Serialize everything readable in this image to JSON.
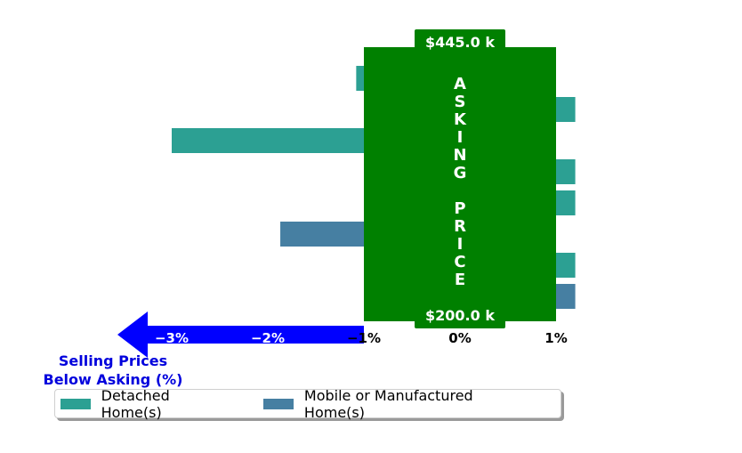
{
  "chart_data": {
    "type": "bar",
    "orientation": "horizontal",
    "xlim": [
      -3.78,
      1.2
    ],
    "xticks": [
      {
        "value": -3,
        "label": "−3%",
        "color": "#ffffff"
      },
      {
        "value": -2,
        "label": "−2%",
        "color": "#ffffff"
      },
      {
        "value": -1,
        "label": "−1%",
        "color": "#000000"
      },
      {
        "value": 0,
        "label": "0%",
        "color": "#000000"
      },
      {
        "value": 1,
        "label": "1%",
        "color": "#000000"
      }
    ],
    "xlabel": "Selling Prices\nBelow Asking (%)",
    "series": [
      {
        "name": "Detached Home(s)",
        "color": "#2ca093"
      },
      {
        "name": "Mobile or Manufactured Home(s)",
        "color": "#467fa2"
      }
    ],
    "bars": [
      {
        "series": 0,
        "value": -1.08
      },
      {
        "series": 0,
        "value": 1.2
      },
      {
        "series": 0,
        "value": -3.0
      },
      {
        "series": 0,
        "value": 1.2
      },
      {
        "series": 0,
        "value": 1.2
      },
      {
        "series": 1,
        "value": -1.87
      },
      {
        "series": 0,
        "value": 1.2
      },
      {
        "series": 1,
        "value": 1.2
      }
    ],
    "asking_price_box": {
      "label": "ASKING PRICE",
      "top_price": "$445.0 k",
      "bottom_price": "$200.0 k",
      "color": "#008000",
      "x_range": [
        -1,
        1
      ]
    },
    "arrow_color": "#0000ff",
    "grid": false
  }
}
